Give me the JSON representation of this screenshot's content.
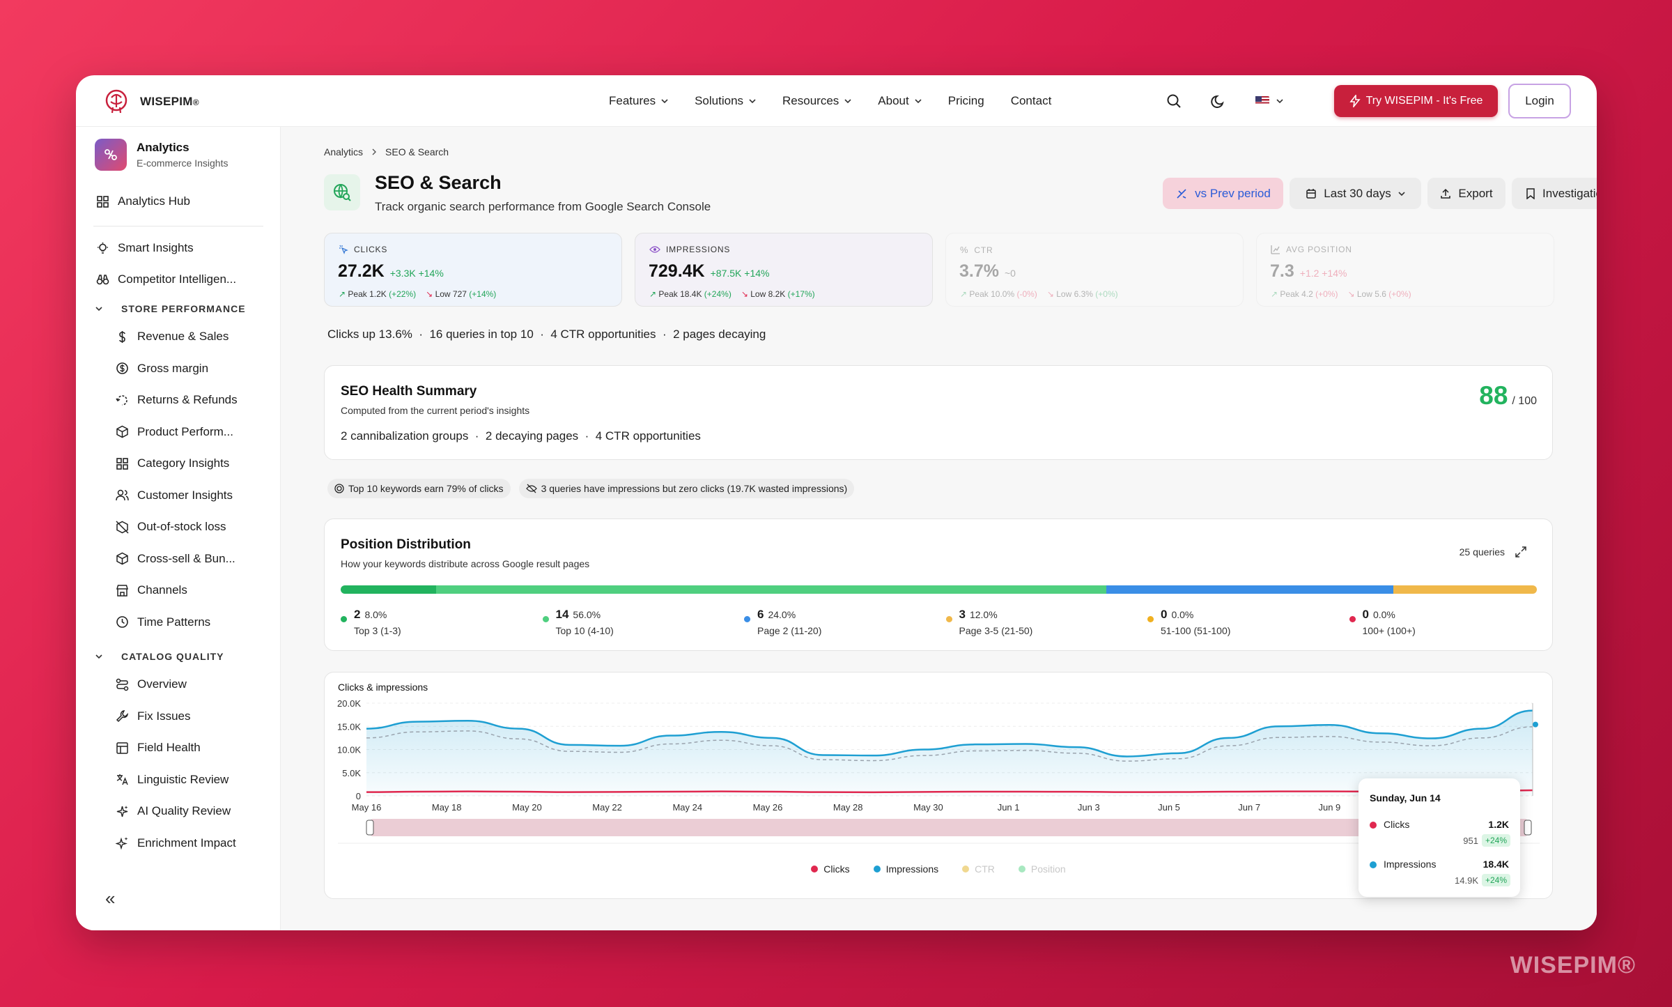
{
  "brand": {
    "name": "WISEPIM",
    "reg": "®"
  },
  "watermark": "WISEPIM®",
  "nav": {
    "links": [
      {
        "label": "Features",
        "dropdown": true
      },
      {
        "label": "Solutions",
        "dropdown": true
      },
      {
        "label": "Resources",
        "dropdown": true
      },
      {
        "label": "About",
        "dropdown": true
      },
      {
        "label": "Pricing",
        "dropdown": false
      },
      {
        "label": "Contact",
        "dropdown": false
      }
    ],
    "try_label": "Try WISEPIM - It's Free",
    "login_label": "Login"
  },
  "sidebar": {
    "title": "Analytics",
    "subtitle": "E-commerce Insights",
    "hub": "Analytics Hub",
    "top_items": [
      "Smart Insights",
      "Competitor Intelligen..."
    ],
    "store_section": "STORE PERFORMANCE",
    "store_items": [
      "Revenue & Sales",
      "Gross margin",
      "Returns & Refunds",
      "Product Perform...",
      "Category Insights",
      "Customer Insights",
      "Out-of-stock loss",
      "Cross-sell & Bun...",
      "Channels",
      "Time Patterns"
    ],
    "catalog_section": "CATALOG QUALITY",
    "catalog_items": [
      "Overview",
      "Fix Issues",
      "Field Health",
      "Linguistic Review",
      "AI Quality Review",
      "Enrichment Impact"
    ],
    "collapse": "«"
  },
  "breadcrumb": [
    "Analytics",
    "SEO & Search"
  ],
  "page": {
    "title": "SEO & Search",
    "subtitle": "Track organic search performance from Google Search Console",
    "buttons": {
      "compare": "vs Prev period",
      "range": "Last 30 days",
      "export": "Export",
      "investigations": "Investigations"
    }
  },
  "kpis": [
    {
      "label": "CLICKS",
      "value": "27.2K",
      "delta": "+3.3K +14%",
      "peak": "Peak 1.2K",
      "peak_d": "(+22%)",
      "low": "Low 727",
      "low_d": "(+14%)"
    },
    {
      "label": "IMPRESSIONS",
      "value": "729.4K",
      "delta": "+87.5K +14%",
      "peak": "Peak 18.4K",
      "peak_d": "(+24%)",
      "low": "Low 8.2K",
      "low_d": "(+17%)"
    },
    {
      "label": "CTR",
      "value": "3.7%",
      "delta": "~0",
      "peak": "Peak 10.0%",
      "peak_d": "(-0%)",
      "low": "Low 6.3%",
      "low_d": "(+0%)"
    },
    {
      "label": "AVG POSITION",
      "value": "7.3",
      "delta": "+1.2 +14%",
      "peak": "Peak 4.2",
      "peak_d": "(+0%)",
      "low": "Low 5.6",
      "low_d": "(+0%)"
    }
  ],
  "summary_line": "Clicks up 13.6%  ·  16 queries in top 10  ·  4 CTR opportunities  ·  2 pages decaying",
  "health": {
    "title": "SEO Health Summary",
    "subtitle": "Computed from the current period's insights",
    "details": "2 cannibalization groups  ·  2 decaying pages  ·  4 CTR opportunities",
    "score": "88",
    "score_max": "/ 100"
  },
  "pills": [
    "Top 10 keywords earn 79% of clicks",
    "3 queries have impressions but zero clicks (19.7K wasted impressions)"
  ],
  "distribution": {
    "title": "Position Distribution",
    "subtitle": "How your keywords distribute across Google result pages",
    "count": "25 queries",
    "items": [
      {
        "count": "2",
        "pct": "8.0%",
        "label": "Top 3 (1-3)",
        "color": "#22b35e",
        "share": 8
      },
      {
        "count": "14",
        "pct": "56.0%",
        "label": "Top 10 (4-10)",
        "color": "#4fcf7f",
        "share": 56
      },
      {
        "count": "6",
        "pct": "24.0%",
        "label": "Page 2 (11-20)",
        "color": "#3a8ee6",
        "share": 24
      },
      {
        "count": "3",
        "pct": "12.0%",
        "label": "Page 3-5 (21-50)",
        "color": "#f0b84a",
        "share": 12
      },
      {
        "count": "0",
        "pct": "0.0%",
        "label": "51-100 (51-100)",
        "color": "#f0b020",
        "share": 0
      },
      {
        "count": "0",
        "pct": "0.0%",
        "label": "100+ (100+)",
        "color": "#e0284f",
        "share": 0
      }
    ]
  },
  "chart_data": {
    "type": "line",
    "title": "Clicks & impressions",
    "x_ticks": [
      "May 16",
      "May 18",
      "May 20",
      "May 22",
      "May 24",
      "May 26",
      "May 28",
      "May 30",
      "Jun 1",
      "Jun 3",
      "Jun 5",
      "Jun 7",
      "Jun 9",
      "Jun 14"
    ],
    "y_ticks": [
      "20.0K",
      "15.0K",
      "10.0K",
      "5.0K",
      "0"
    ],
    "ylim": [
      0,
      20000
    ],
    "series": [
      {
        "name": "Impressions",
        "color": "#1e9fd2",
        "values": [
          14500,
          16000,
          16200,
          14500,
          11000,
          10800,
          13000,
          13800,
          12500,
          8800,
          8700,
          10000,
          11100,
          11200,
          10500,
          8500,
          9200,
          12500,
          15000,
          15300,
          13500,
          12400,
          14500,
          18400
        ]
      },
      {
        "name": "Prev impressions",
        "color": "#9aa3ad",
        "values": [
          12500,
          13800,
          14000,
          12300,
          9600,
          9400,
          11200,
          12000,
          10800,
          7800,
          7600,
          8700,
          9700,
          9800,
          9200,
          7500,
          8000,
          10800,
          12600,
          12800,
          11600,
          10800,
          12500,
          14900
        ]
      },
      {
        "name": "Clicks",
        "color": "#e0284f",
        "values": [
          800,
          900,
          950,
          900,
          800,
          850,
          900,
          950,
          900,
          800,
          780,
          850,
          900,
          900,
          880,
          800,
          820,
          900,
          950,
          960,
          920,
          900,
          950,
          1200
        ]
      }
    ],
    "legend": [
      {
        "name": "Clicks",
        "color": "#e0284f",
        "active": true
      },
      {
        "name": "Impressions",
        "color": "#1e9fd2",
        "active": true
      },
      {
        "name": "CTR",
        "color": "#f0d890",
        "active": false
      },
      {
        "name": "Position",
        "color": "#a8e8c0",
        "active": false
      }
    ],
    "tooltip": {
      "date": "Sunday, Jun 14",
      "rows": [
        {
          "name": "Clicks",
          "color": "#e0284f",
          "value": "1.2K",
          "prev": "951",
          "delta": "+24%"
        },
        {
          "name": "Impressions",
          "color": "#1e9fd2",
          "value": "18.4K",
          "prev": "14.9K",
          "delta": "+24%"
        }
      ]
    }
  }
}
